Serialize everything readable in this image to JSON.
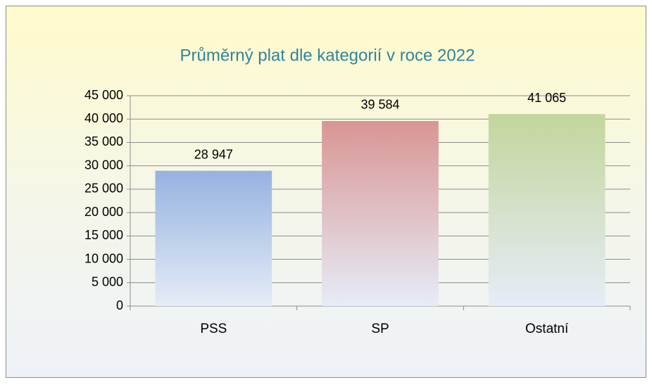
{
  "chart_data": {
    "type": "bar",
    "title": "Průměrný plat dle kategorií v roce 2022",
    "categories": [
      "PSS",
      "SP",
      "Ostatní"
    ],
    "values": [
      28947,
      39584,
      41065
    ],
    "value_labels": [
      "28 947",
      "39 584",
      "41 065"
    ],
    "colors": [
      "#95b3e0",
      "#d99594",
      "#c3d69b"
    ],
    "ylim": [
      0,
      45000
    ],
    "yticks": [
      0,
      {
        "value": 5000,
        "label": "5 000"
      },
      {
        "value": 10000,
        "label": "10 000"
      },
      {
        "value": 15000,
        "label": "15 000"
      },
      {
        "value": 20000,
        "label": "20 000"
      },
      {
        "value": 25000,
        "label": "25 000"
      },
      {
        "value": 30000,
        "label": "30 000"
      },
      {
        "value": 35000,
        "label": "35 000"
      },
      {
        "value": 40000,
        "label": "40 000"
      },
      {
        "value": 45000,
        "label": "45 000"
      }
    ],
    "grid": true
  }
}
